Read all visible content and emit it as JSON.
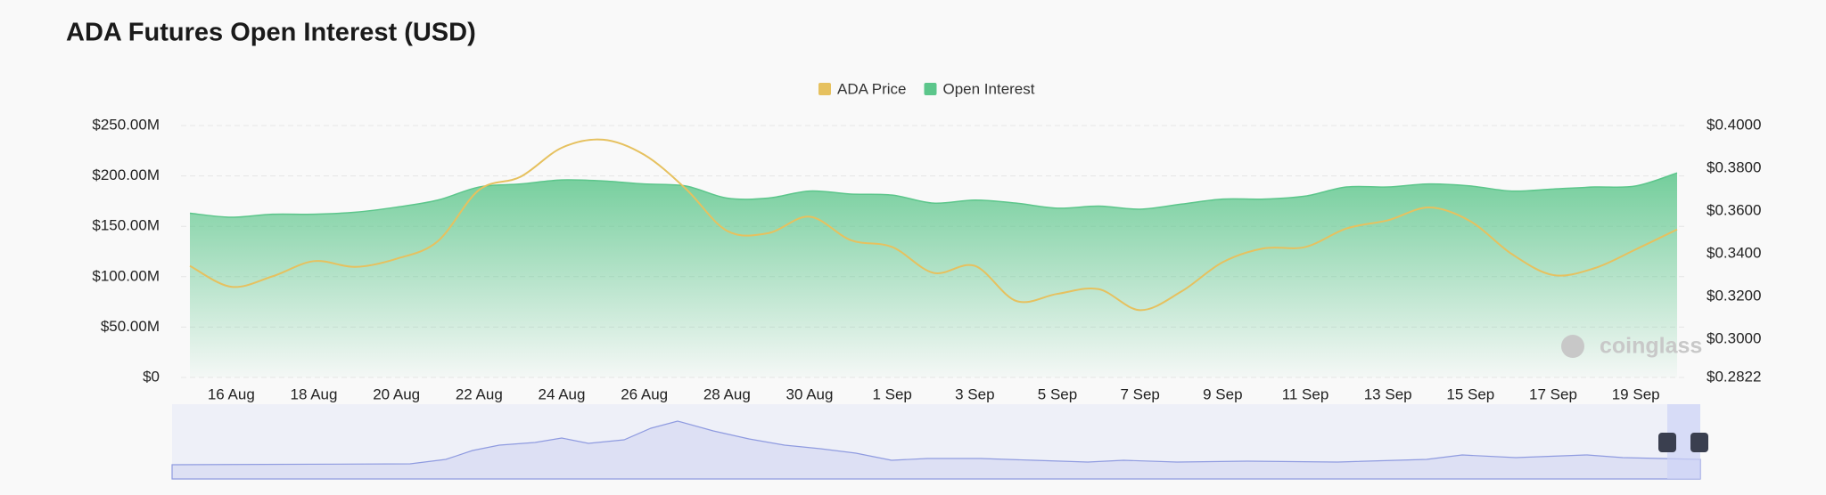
{
  "chart_data": {
    "type": "area-line",
    "title": "ADA Futures Open Interest (USD)",
    "watermark": "coinglass",
    "categories": [
      null,
      "16 Aug",
      null,
      "18 Aug",
      null,
      "20 Aug",
      null,
      "22 Aug",
      null,
      "24 Aug",
      null,
      "26 Aug",
      null,
      "28 Aug",
      null,
      "30 Aug",
      null,
      "1 Sep",
      null,
      "3 Sep",
      null,
      "5 Sep",
      null,
      "7 Sep",
      null,
      "9 Sep",
      null,
      "11 Sep",
      null,
      "13 Sep",
      null,
      "15 Sep",
      null,
      "17 Sep",
      null,
      "19 Sep",
      null
    ],
    "series": [
      {
        "name": "ADA Price",
        "color": "#e6c15f",
        "axis": "y2",
        "values": [
          0.3344,
          0.3246,
          0.3295,
          0.3366,
          0.3339,
          0.3377,
          0.3459,
          0.3699,
          0.376,
          0.3896,
          0.3934,
          0.3863,
          0.3705,
          0.3508,
          0.3497,
          0.3574,
          0.3464,
          0.3432,
          0.3311,
          0.3344,
          0.318,
          0.3213,
          0.3235,
          0.3137,
          0.3224,
          0.3361,
          0.3426,
          0.3432,
          0.3519,
          0.3557,
          0.3617,
          0.3552,
          0.3399,
          0.3301,
          0.3333,
          0.3421,
          0.3514
        ]
      },
      {
        "name": "Open Interest",
        "color": "#5cc68b",
        "values": [
          163000000,
          159000000,
          162000000,
          162000000,
          164000000,
          169000000,
          176000000,
          189000000,
          192000000,
          196000000,
          195000000,
          192000000,
          190000000,
          178000000,
          178000000,
          185000000,
          182000000,
          181000000,
          173000000,
          176000000,
          173000000,
          168000000,
          170000000,
          167000000,
          172000000,
          177000000,
          177000000,
          180000000,
          189000000,
          189000000,
          192000000,
          190000000,
          185000000,
          187000000,
          189000000,
          190000000,
          203000000
        ]
      }
    ],
    "ylim": [
      0,
      250000000
    ],
    "yticks": [
      {
        "value": 0,
        "label": "$0"
      },
      {
        "value": 50000000,
        "label": "$50.00M"
      },
      {
        "value": 100000000,
        "label": "$100.00M"
      },
      {
        "value": 150000000,
        "label": "$150.00M"
      },
      {
        "value": 200000000,
        "label": "$200.00M"
      },
      {
        "value": 250000000,
        "label": "$250.00M"
      }
    ],
    "y2lim": [
      0.2822,
      0.4
    ],
    "y2ticks": [
      {
        "value": 0.2822,
        "label": "$0.2822"
      },
      {
        "value": 0.3,
        "label": "$0.3000"
      },
      {
        "value": 0.32,
        "label": "$0.3200"
      },
      {
        "value": 0.34,
        "label": "$0.3400"
      },
      {
        "value": 0.36,
        "label": "$0.3600"
      },
      {
        "value": 0.38,
        "label": "$0.3800"
      },
      {
        "value": 0.4,
        "label": "$0.4000"
      }
    ],
    "grid": true,
    "legend": "top"
  }
}
